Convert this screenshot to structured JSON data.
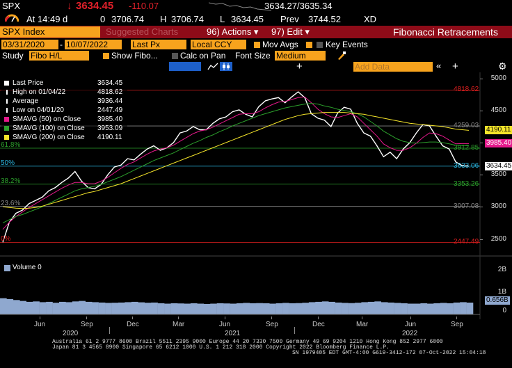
{
  "quote": {
    "ticker": "SPX",
    "arrow": "↓",
    "last": "3634.45",
    "change": "-110.07",
    "bid_ask": "3634.27/3635.34",
    "time_label": "At 14:49 d",
    "open_label": "0",
    "open": "3706.74",
    "high_label": "H",
    "high": "3706.74",
    "low_label": "L",
    "low": "3634.45",
    "prev_label": "Prev",
    "prev": "3744.52",
    "venue": "XD"
  },
  "toolbar": {
    "security": "SPX Index",
    "suggested": "Suggested Charts",
    "actions": "96) Actions ▾",
    "edit": "97) Edit ▾",
    "title": "Fibonacci Retracements"
  },
  "controls": {
    "start_date": "03/31/2020",
    "end_date": "10/07/2022",
    "price_field": "Last Px",
    "currency": "Local CCY",
    "mov_avgs": "Mov Avgs",
    "key_events": "Key Events",
    "study_label": "Study",
    "study": "Fibo H/L",
    "show_fibo": "Show Fibo...",
    "calc_on_pan": "Calc on Pan",
    "font_size_label": "Font Size",
    "font_size": "Medium",
    "add_data": "Add Data"
  },
  "legend": [
    {
      "label": "Last Price",
      "value": "3634.45",
      "color": "#ffffff"
    },
    {
      "label": "High on 01/04/22",
      "value": "4818.62",
      "color": "#ffffff"
    },
    {
      "label": "Average",
      "value": "3936.44",
      "color": "#ffffff"
    },
    {
      "label": "Low on 04/01/20",
      "value": "2447.49",
      "color": "#ffffff"
    },
    {
      "label": "SMAVG (50)  on Close",
      "value": "3985.40",
      "color": "#e6198c"
    },
    {
      "label": "SMAVG (100)  on Close",
      "value": "3953.09",
      "color": "#2ca02c"
    },
    {
      "label": "SMAVG (200)  on Close",
      "value": "4190.11",
      "color": "#f5e52a"
    }
  ],
  "volume_label": "Volume 0",
  "fib_levels": [
    {
      "label": "4818.62",
      "value": 4818.62,
      "color": "#e01f1f"
    },
    {
      "label": "4259.03",
      "value": 4259.03,
      "color": "#888888"
    },
    {
      "label": "3912.85",
      "value": 3912.85,
      "color": "#2ca02c"
    },
    {
      "label": "3633.06",
      "value": 3633.06,
      "color": "#2bb6e0"
    },
    {
      "label": "3353.26",
      "value": 3353.26,
      "color": "#2ca02c"
    },
    {
      "label": "3007.08",
      "value": 3007.08,
      "color": "#888888"
    },
    {
      "label": "2447.49",
      "value": 2447.49,
      "color": "#e01f1f"
    }
  ],
  "fib_pct_labels": [
    {
      "label": "61.8%",
      "value": 3912.85,
      "color": "#2ca02c"
    },
    {
      "label": "50%",
      "value": 3633.06,
      "color": "#2bb6e0"
    },
    {
      "label": "38.2%",
      "value": 3353.26,
      "color": "#2ca02c"
    },
    {
      "label": "23.6%",
      "value": 3007.08,
      "color": "#888888"
    },
    {
      "label": "0%",
      "value": 2447.49,
      "color": "#e01f1f"
    }
  ],
  "badges": [
    {
      "label": "4190.11",
      "value": 4190.11,
      "bg": "#f5e52a",
      "fg": "#000000"
    },
    {
      "label": "3985.40",
      "value": 3985.4,
      "bg": "#e6198c",
      "fg": "#ffffff"
    },
    {
      "label": "3634.45",
      "value": 3634.45,
      "bg": "#ffffff",
      "fg": "#000000"
    }
  ],
  "volume_badge": "0.656B",
  "chart_data": {
    "type": "line",
    "title": "",
    "y_ticks": [
      2500,
      3000,
      3500,
      4000,
      4500,
      5000
    ],
    "ylim": [
      2300,
      5050
    ],
    "volume_ticks": [
      "2B",
      "1B",
      "0"
    ],
    "x_month_ticks": [
      "Jun",
      "Sep",
      "Dec",
      "Mar",
      "Jun",
      "Sep",
      "Dec",
      "Mar",
      "Jun",
      "Sep"
    ],
    "x_year_labels": [
      "2020",
      "2021",
      "2022"
    ],
    "series": [
      {
        "name": "Last Price",
        "color": "#ffffff",
        "values": [
          2447,
          2760,
          2900,
          2950,
          3050,
          3100,
          3150,
          3250,
          3300,
          3380,
          3450,
          3550,
          3400,
          3300,
          3280,
          3350,
          3500,
          3620,
          3650,
          3750,
          3730,
          3820,
          3900,
          3950,
          3880,
          3920,
          4000,
          4150,
          4180,
          4250,
          4200,
          4200,
          4300,
          4370,
          4400,
          4480,
          4510,
          4440,
          4400,
          4560,
          4650,
          4680,
          4700,
          4620,
          4710,
          4790,
          4700,
          4450,
          4380,
          4350,
          4250,
          4460,
          4550,
          4520,
          4300,
          4150,
          4100,
          3950,
          3780,
          3850,
          3750,
          3900,
          4000,
          4150,
          4280,
          4260,
          4100,
          3950,
          3900,
          3700,
          3640,
          3634
        ]
      },
      {
        "name": "SMAVG (50)",
        "color": "#e6198c",
        "values": [
          2650,
          2760,
          2850,
          2920,
          2990,
          3050,
          3110,
          3170,
          3230,
          3290,
          3340,
          3380,
          3380,
          3360,
          3360,
          3400,
          3460,
          3530,
          3600,
          3660,
          3700,
          3760,
          3820,
          3870,
          3900,
          3920,
          3960,
          4020,
          4080,
          4140,
          4180,
          4200,
          4240,
          4290,
          4340,
          4390,
          4440,
          4450,
          4450,
          4480,
          4540,
          4590,
          4630,
          4640,
          4670,
          4700,
          4710,
          4620,
          4520,
          4450,
          4400,
          4390,
          4420,
          4450,
          4400,
          4300,
          4200,
          4100,
          3980,
          3920,
          3880,
          3880,
          3920,
          3990,
          4080,
          4150,
          4140,
          4100,
          4040,
          3980,
          3985,
          3985
        ]
      },
      {
        "name": "SMAVG (100)",
        "color": "#2ca02c",
        "values": [
          2750,
          2800,
          2850,
          2880,
          2920,
          2960,
          3000,
          3050,
          3100,
          3150,
          3200,
          3250,
          3280,
          3300,
          3320,
          3350,
          3390,
          3430,
          3470,
          3520,
          3570,
          3620,
          3670,
          3720,
          3760,
          3800,
          3840,
          3890,
          3940,
          3990,
          4030,
          4080,
          4120,
          4170,
          4210,
          4260,
          4300,
          4340,
          4380,
          4420,
          4450,
          4480,
          4510,
          4540,
          4560,
          4580,
          4600,
          4610,
          4600,
          4570,
          4550,
          4520,
          4500,
          4480,
          4450,
          4400,
          4330,
          4260,
          4180,
          4120,
          4060,
          4020,
          4000,
          3990,
          4000,
          4010,
          4010,
          4000,
          3980,
          3960,
          3955,
          3953
        ]
      },
      {
        "name": "SMAVG (200)",
        "color": "#f5e52a",
        "values": [
          3000,
          2990,
          2980,
          2975,
          2980,
          2990,
          3010,
          3040,
          3070,
          3100,
          3130,
          3160,
          3190,
          3220,
          3240,
          3270,
          3300,
          3330,
          3360,
          3400,
          3440,
          3480,
          3520,
          3560,
          3600,
          3640,
          3680,
          3720,
          3760,
          3800,
          3840,
          3880,
          3920,
          3960,
          4000,
          4040,
          4080,
          4120,
          4160,
          4200,
          4240,
          4280,
          4320,
          4360,
          4390,
          4420,
          4440,
          4450,
          4460,
          4470,
          4470,
          4470,
          4470,
          4460,
          4450,
          4440,
          4420,
          4400,
          4380,
          4360,
          4340,
          4320,
          4300,
          4290,
          4280,
          4270,
          4260,
          4250,
          4230,
          4210,
          4200,
          4190
        ]
      }
    ],
    "volume": [
      0.9,
      0.85,
      0.8,
      0.75,
      0.7,
      0.72,
      0.68,
      0.7,
      0.65,
      0.7,
      0.68,
      0.72,
      0.75,
      0.7,
      0.68,
      0.66,
      0.64,
      0.65,
      0.66,
      0.68,
      0.7,
      0.67,
      0.65,
      0.66,
      0.62,
      0.6,
      0.62,
      0.61,
      0.6,
      0.62,
      0.6,
      0.58,
      0.6,
      0.62,
      0.61,
      0.6,
      0.62,
      0.64,
      0.62,
      0.63,
      0.62,
      0.6,
      0.62,
      0.64,
      0.62,
      0.63,
      0.65,
      0.68,
      0.7,
      0.72,
      0.7,
      0.66,
      0.64,
      0.63,
      0.65,
      0.68,
      0.7,
      0.72,
      0.68,
      0.66,
      0.64,
      0.62,
      0.6,
      0.6,
      0.62,
      0.6,
      0.62,
      0.64,
      0.62,
      0.66,
      0.68,
      0.656
    ]
  },
  "footer": {
    "line1": "Australia 61 2 9777 8600 Brazil 5511 2395 9000 Europe 44 20 7330 7500 Germany 49 69 9204 1210 Hong Kong 852 2977 6000",
    "line2": "Japan 81 3 4565 8900        Singapore 65 6212 1000        U.S. 1 212 318 2000        Copyright 2022 Bloomberg Finance L.P.",
    "line3": "SN 1979405 EDT  GMT-4:00 G619-3412-172 07-Oct-2022 15:04:18"
  }
}
